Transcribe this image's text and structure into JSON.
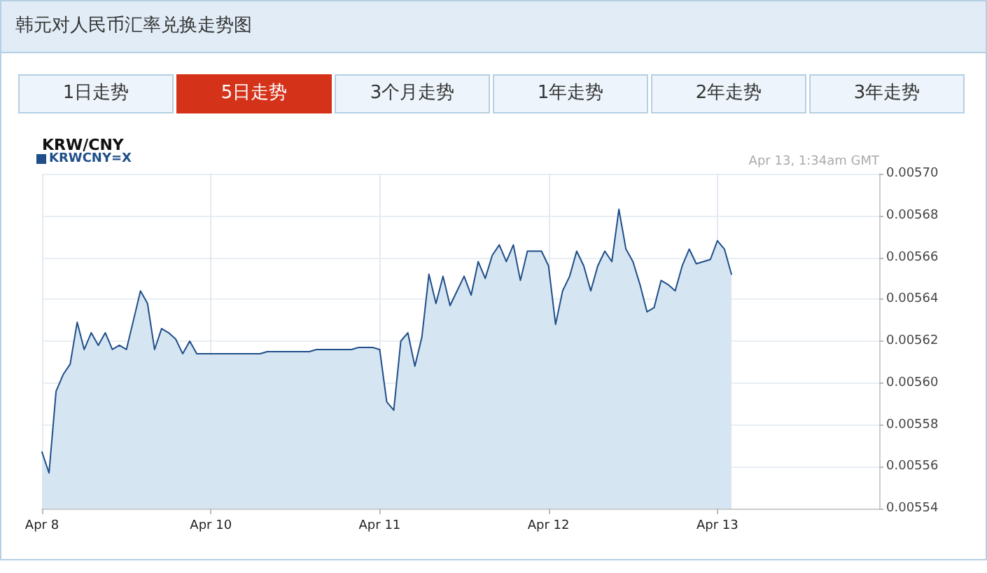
{
  "chart_data": {
    "type": "area",
    "title": "韩元对人民币汇率兑换走势图",
    "subtitle": "KRW/CNY",
    "annotations": [
      "1日走势",
      "5日走势",
      "3个月走势",
      "1年走势",
      "2年走势",
      "3年走势",
      "Apr 13, 1:34am GMT"
    ],
    "categories": [
      "Apr 8",
      null,
      null,
      null,
      null,
      null,
      null,
      null,
      null,
      null,
      null,
      null,
      null,
      null,
      null,
      null,
      null,
      null,
      null,
      null,
      null,
      null,
      null,
      null,
      "Apr 10",
      null,
      null,
      null,
      null,
      null,
      null,
      null,
      null,
      null,
      null,
      null,
      null,
      null,
      null,
      null,
      null,
      null,
      null,
      null,
      null,
      null,
      null,
      null,
      "Apr 11",
      null,
      null,
      null,
      null,
      null,
      null,
      null,
      null,
      null,
      null,
      null,
      null,
      null,
      null,
      null,
      null,
      null,
      null,
      null,
      null,
      null,
      null,
      null,
      "Apr 12",
      null,
      null,
      null,
      null,
      null,
      null,
      null,
      null,
      null,
      null,
      null,
      null,
      null,
      null,
      null,
      null,
      null,
      null,
      null,
      null,
      null,
      null,
      null,
      "Apr 13",
      null,
      null,
      null,
      null,
      null,
      null,
      null,
      null,
      null,
      null,
      null,
      null,
      null,
      null,
      null,
      null,
      null,
      null,
      null,
      null,
      null,
      null,
      null
    ],
    "series": [
      {
        "name": "KRWCNY=X",
        "color": "#1f4e89",
        "values": [
          0.005567,
          0.005557,
          0.005596,
          0.005604,
          0.005609,
          0.005629,
          0.005616,
          0.005624,
          0.005618,
          0.005624,
          0.005616,
          0.005618,
          0.005616,
          0.00563,
          0.005644,
          0.005638,
          0.005616,
          0.005626,
          0.005624,
          0.005621,
          0.005614,
          0.00562,
          0.005614,
          0.005614,
          0.005614,
          0.005614,
          0.005614,
          0.005614,
          0.005614,
          0.005614,
          0.005614,
          0.005614,
          0.005615,
          0.005615,
          0.005615,
          0.005615,
          0.005615,
          0.005615,
          0.005615,
          0.005616,
          0.005616,
          0.005616,
          0.005616,
          0.005616,
          0.005616,
          0.005617,
          0.005617,
          0.005617,
          0.005616,
          0.005591,
          0.005587,
          0.00562,
          0.005624,
          0.005608,
          0.005622,
          0.005652,
          0.005638,
          0.005651,
          0.005637,
          0.005644,
          0.005651,
          0.005642,
          0.005658,
          0.00565,
          0.005661,
          0.005666,
          0.005658,
          0.005666,
          0.005649,
          0.005663,
          0.005663,
          0.005663,
          0.005656,
          0.005628,
          0.005644,
          0.005651,
          0.005663,
          0.005656,
          0.005644,
          0.005656,
          0.005663,
          0.005658,
          0.005683,
          0.005664,
          0.005658,
          0.005647,
          0.005634,
          0.005636,
          0.005649,
          0.005647,
          0.005644,
          0.005656,
          0.005664,
          0.005657,
          0.005658,
          0.005659,
          0.005668,
          0.005664,
          0.005652,
          null,
          null,
          null,
          null,
          null,
          null,
          null,
          null,
          null,
          null,
          null,
          null,
          null,
          null,
          null,
          null,
          null,
          null,
          null,
          null,
          null
        ]
      }
    ],
    "ylim": [
      0.00554,
      0.0057
    ],
    "yticks": [
      {
        "value": 0.00554,
        "label": "0.00554"
      },
      {
        "value": 0.00556,
        "label": "0.00556"
      },
      {
        "value": 0.00558,
        "label": "0.00558"
      },
      {
        "value": 0.0056,
        "label": "0.00560"
      },
      {
        "value": 0.00562,
        "label": "0.00562"
      },
      {
        "value": 0.00564,
        "label": "0.00564"
      },
      {
        "value": 0.00566,
        "label": "0.00566"
      },
      {
        "value": 0.00568,
        "label": "0.00568"
      },
      {
        "value": 0.0057,
        "label": "0.00570"
      }
    ],
    "grid": true,
    "legend": "top left",
    "marker": "none",
    "line_style": "solid"
  }
}
